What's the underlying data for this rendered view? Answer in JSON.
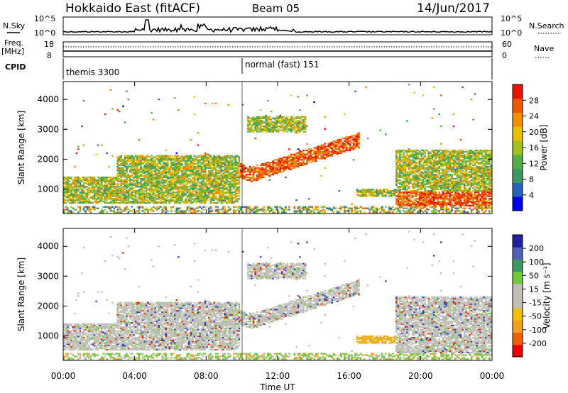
{
  "header": {
    "title": "Hokkaido East (fitACF)",
    "beam": "Beam 05",
    "date": "14/Jun/2017"
  },
  "top_panels": {
    "nsky_label": "N.Sky",
    "nsearch_label": "N.Search",
    "noise_ticks_left": [
      "10^5",
      "10^0"
    ],
    "noise_ticks_right": [
      "10^5",
      "10^0"
    ],
    "freq_label": "Freq.",
    "freq_unit": "[MHz]",
    "freq_ticks": [
      "18",
      "8"
    ],
    "nave_label": "Nave",
    "nave_ticks": [
      "60",
      "0"
    ],
    "cpid_label": "CPID",
    "cpid_segments": [
      {
        "start_hour": 0,
        "label": "themis 3300"
      },
      {
        "start_hour": 9.9,
        "label": "normal (fast) 151"
      }
    ]
  },
  "chart_data": [
    {
      "type": "heatmap",
      "panel": "power",
      "ylabel": "Slant Range [km]",
      "ylim": [
        180,
        4600
      ],
      "yticks": [
        1000,
        2000,
        3000,
        4000
      ],
      "xlim_hours": [
        0,
        24
      ],
      "xticks": [
        "00:00",
        "04:00",
        "08:00",
        "12:00",
        "16:00",
        "20:00",
        "00:00"
      ],
      "colorbar_label": "Power [dB]",
      "colorbar_ticks": [
        "28",
        "24",
        "20",
        "16",
        "12",
        "8",
        "4"
      ],
      "colorbar_colors": [
        "#0000e8",
        "#2860b8",
        "#3c9860",
        "#54b044",
        "#a0c020",
        "#e8c000",
        "#f09000",
        "#f05800",
        "#e81400"
      ],
      "echo_bands": [
        {
          "start_hour": 0,
          "end_hour": 9.8,
          "range_km": [
            500,
            1400
          ]
        },
        {
          "start_hour": 3,
          "end_hour": 9.8,
          "range_km": [
            1200,
            2100
          ]
        },
        {
          "start_hour": 7.8,
          "end_hour": 16.5,
          "range_km": [
            1250,
            2700
          ]
        },
        {
          "start_hour": 10.2,
          "end_hour": 13.5,
          "range_km": [
            2900,
            3400
          ]
        },
        {
          "start_hour": 16.3,
          "end_hour": 18.5,
          "range_km": [
            700,
            1000
          ]
        },
        {
          "start_hour": 18.5,
          "end_hour": 24,
          "range_km": [
            400,
            2300
          ]
        }
      ]
    },
    {
      "type": "heatmap",
      "panel": "velocity",
      "ylabel": "Slant Range [km]",
      "ylim": [
        180,
        4600
      ],
      "yticks": [
        1000,
        2000,
        3000,
        4000
      ],
      "xlim_hours": [
        0,
        24
      ],
      "xticks": [
        "00:00",
        "04:00",
        "08:00",
        "12:00",
        "16:00",
        "20:00",
        "00:00"
      ],
      "xlabel": "Time UT",
      "colorbar_label": "Velocity [m s⁻¹]",
      "colorbar_ticks": [
        "200",
        "100",
        "50",
        "15",
        "-15",
        "-50",
        "-100",
        "-200"
      ],
      "colorbar_colors": [
        "#e80000",
        "#f06000",
        "#f0a020",
        "#f0c000",
        "#c0c0b8",
        "#c0c0b8",
        "#74c83c",
        "#3c9860",
        "#5060b8",
        "#2020a0"
      ]
    }
  ]
}
